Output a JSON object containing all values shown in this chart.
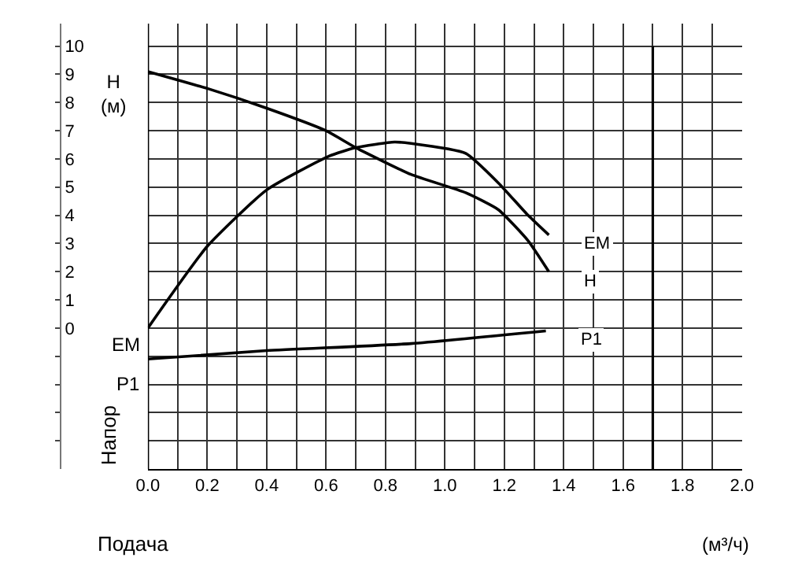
{
  "chart_data": {
    "type": "line",
    "xlabel": "Подача",
    "ylabel": "H\n(м)",
    "annotations": [
      "EM",
      "P1",
      "Напор",
      "(м³/ч)"
    ],
    "series": [
      {
        "name": "EM",
        "color": "#000000",
        "x": [
          0,
          0.2,
          0.4,
          0.61,
          0.7,
          0.83,
          0.886,
          1.07,
          1.18,
          1.28,
          1.35
        ],
        "values": [
          0,
          2.9,
          4.9,
          6.1,
          6.4,
          6.6,
          6.55,
          6.2,
          5.15,
          4.0,
          3.3
        ]
      },
      {
        "name": "H",
        "color": "#000000",
        "x": [
          0,
          0.2,
          0.4,
          0.6,
          0.7,
          0.886,
          1.07,
          1.18,
          1.28,
          1.35
        ],
        "values": [
          9.1,
          8.5,
          7.8,
          7.0,
          6.4,
          5.45,
          4.8,
          4.2,
          3.1,
          2.0
        ]
      },
      {
        "name": "P1",
        "color": "#000000",
        "x": [
          0,
          0.4,
          0.886,
          1.34
        ],
        "values": [
          -1.1,
          -0.8,
          -0.55,
          -0.1
        ]
      }
    ],
    "xlim": [
      0,
      2.0
    ],
    "xticks": [
      {
        "value": 0,
        "label": "0.0"
      },
      0.2,
      0.4,
      0.6,
      0.8,
      {
        "value": 1,
        "label": "1.0"
      },
      1.2,
      1.4,
      1.6,
      1.8,
      {
        "value": 2,
        "label": "2.0"
      }
    ],
    "ylim": [
      -5,
      10.8
    ],
    "yticks": [
      {
        "value": -4,
        "label": null
      },
      {
        "value": -3,
        "label": null
      },
      {
        "value": -2,
        "label": null
      },
      {
        "value": -1,
        "label": null
      },
      0,
      1,
      2,
      3,
      4,
      5,
      6,
      7,
      8,
      9,
      10
    ],
    "ref_lines": [
      {
        "axis": "x",
        "value": 1.7,
        "label": null,
        "color": "#000000"
      }
    ],
    "grid": true,
    "legend": false,
    "marker": "none",
    "line_style": "solid"
  }
}
